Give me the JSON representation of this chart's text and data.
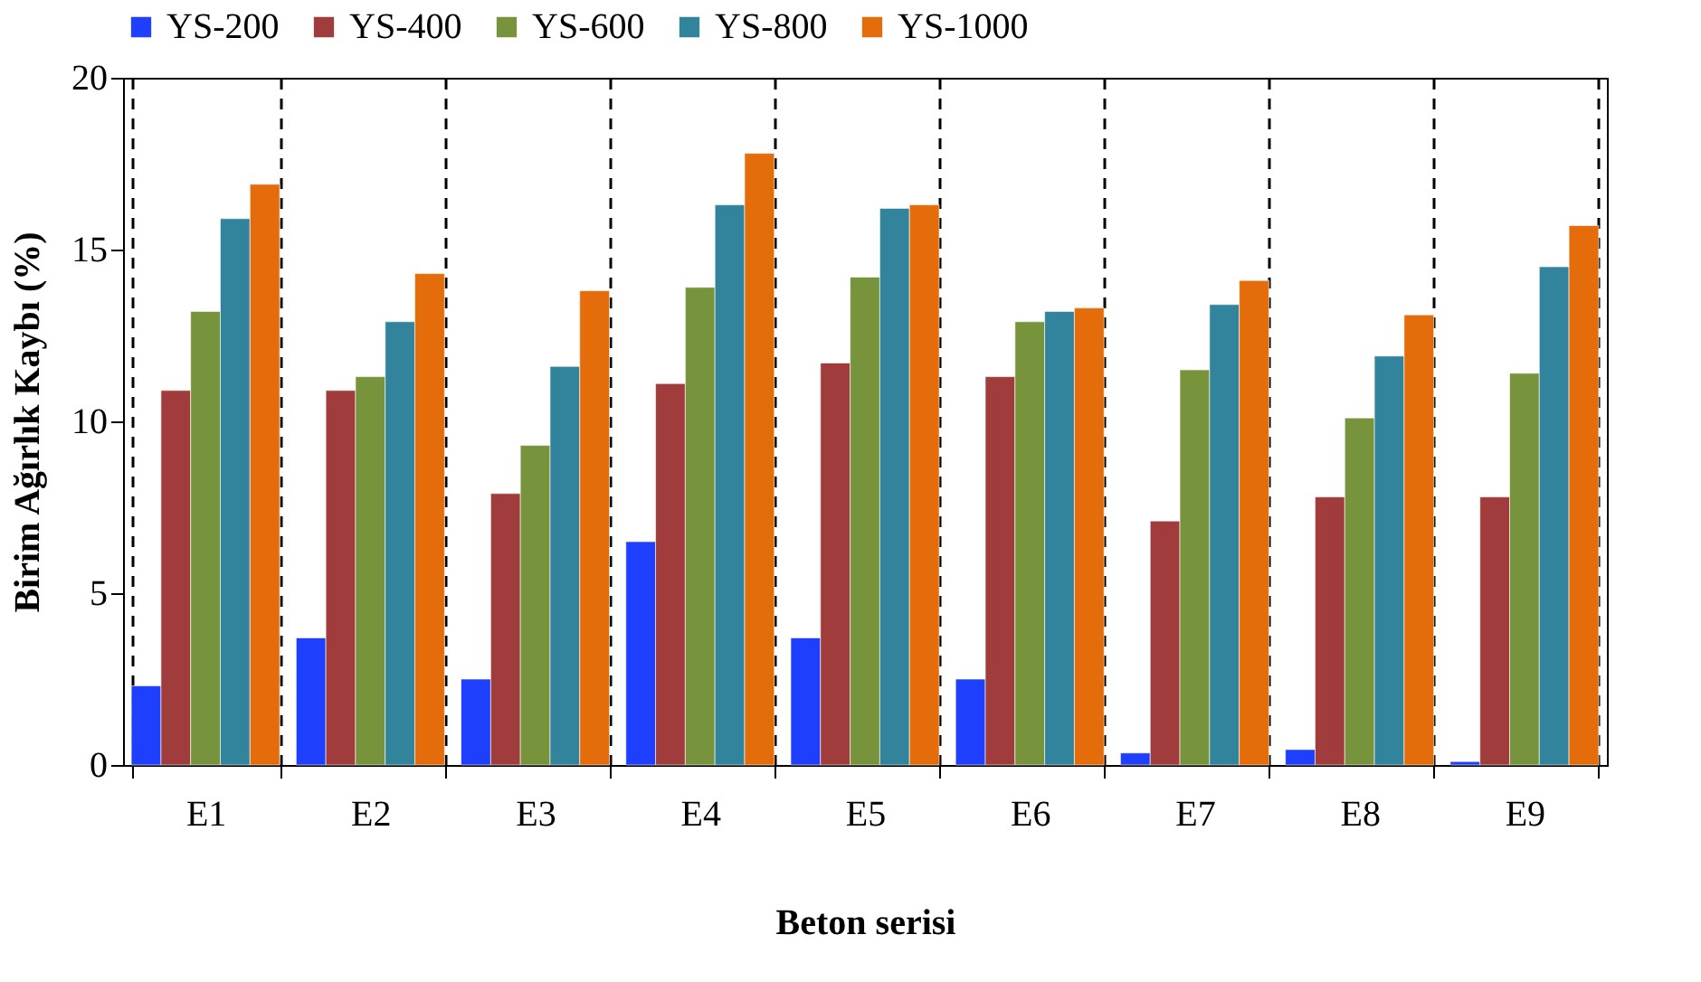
{
  "chart_data": {
    "type": "bar",
    "xlabel": "Beton serisi",
    "ylabel": "Birim Ağırlık Kaybı (%)",
    "categories": [
      "E1",
      "E2",
      "E3",
      "E4",
      "E5",
      "E6",
      "E7",
      "E8",
      "E9"
    ],
    "series": [
      {
        "name": "YS-200",
        "color": "#1f3fff",
        "values": [
          2.3,
          3.7,
          2.5,
          6.5,
          3.7,
          2.5,
          0.35,
          0.45,
          0.1
        ]
      },
      {
        "name": "YS-400",
        "color": "#a03c3c",
        "values": [
          10.9,
          10.9,
          7.9,
          11.1,
          11.7,
          11.3,
          7.1,
          7.8,
          7.8
        ]
      },
      {
        "name": "YS-600",
        "color": "#77933c",
        "values": [
          13.2,
          11.3,
          9.3,
          13.9,
          14.2,
          12.9,
          11.5,
          10.1,
          11.4
        ]
      },
      {
        "name": "YS-800",
        "color": "#31849b",
        "values": [
          15.9,
          12.9,
          11.6,
          16.3,
          16.2,
          13.2,
          13.4,
          11.9,
          14.5
        ]
      },
      {
        "name": "YS-1000",
        "color": "#e46c0a",
        "values": [
          16.9,
          14.3,
          13.8,
          17.8,
          16.3,
          13.3,
          14.1,
          13.1,
          15.7
        ]
      }
    ],
    "ylim": [
      0,
      20
    ],
    "yticks": [
      0,
      5,
      10,
      15,
      20
    ],
    "grid": "x",
    "legend": "top"
  }
}
